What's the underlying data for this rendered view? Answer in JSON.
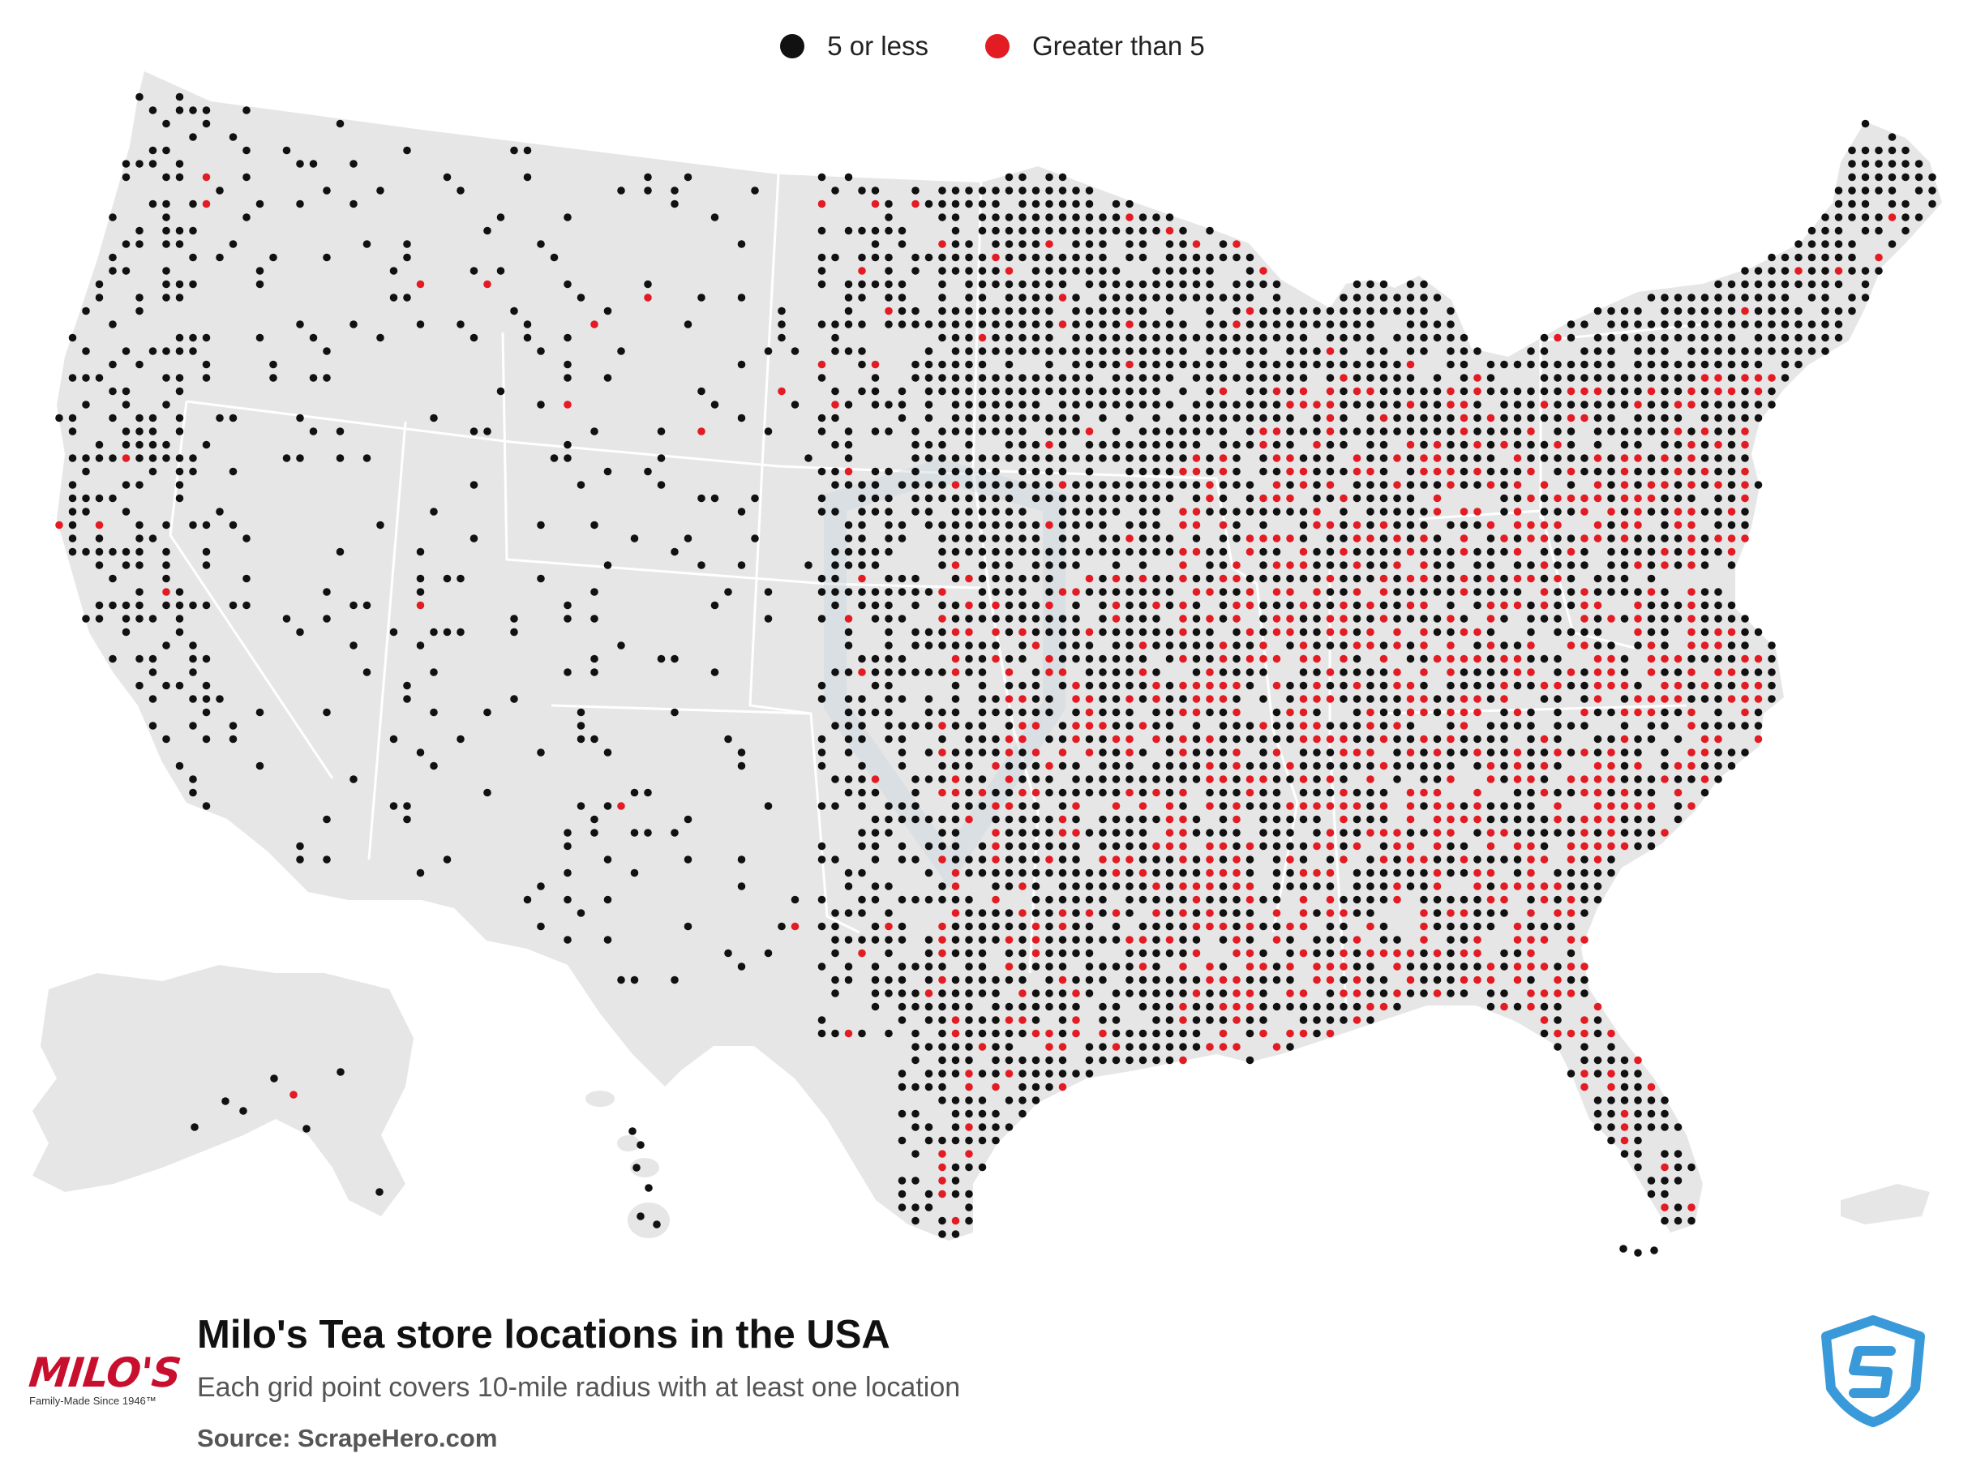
{
  "legend": {
    "items": [
      {
        "label": "5 or less",
        "color": "#111111"
      },
      {
        "label": "Greater than 5",
        "color": "#e31b23"
      }
    ]
  },
  "footer": {
    "title": "Milo's Tea store locations in the USA",
    "subtitle": "Each grid point covers 10-mile radius with at least one location",
    "source": "Source: ScrapeHero.com"
  },
  "logos": {
    "brand_word": "MILO'S",
    "brand_tagline": "Family-Made Since 1946™",
    "scrapehero_icon": "scrapehero-shield-icon"
  },
  "colors": {
    "land": "#e6e6e6",
    "border": "#ffffff",
    "low": "#111111",
    "high": "#e31b23",
    "scrapehero": "#3a9ad9"
  }
}
